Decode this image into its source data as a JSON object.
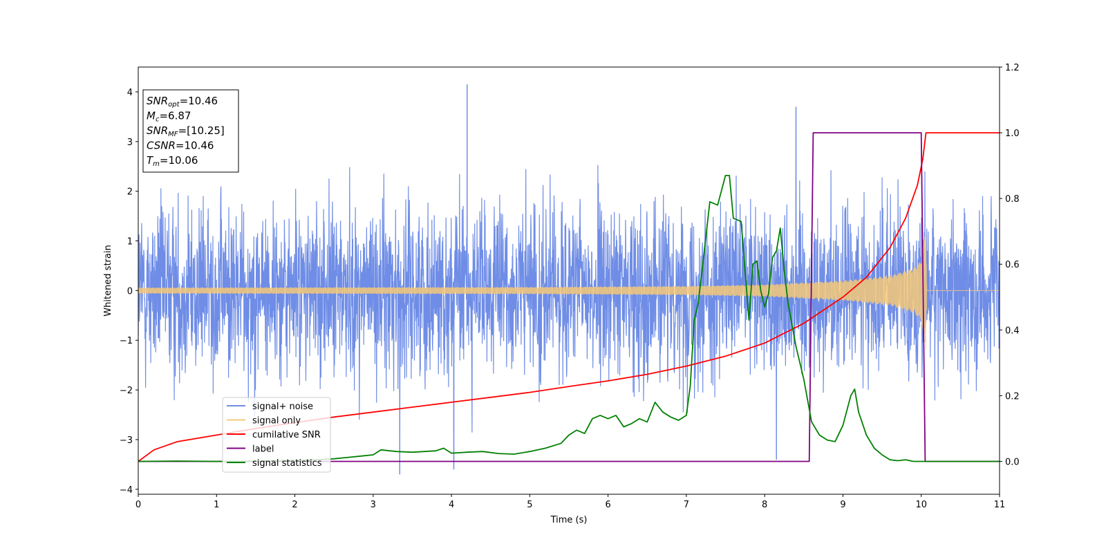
{
  "chart_data": {
    "type": "line",
    "xlabel": "Time (s)",
    "ylabel": "Whitened strain",
    "xlim": [
      0,
      11
    ],
    "ylim_left": [
      -4.1,
      4.5
    ],
    "ylim_right": [
      -0.1,
      1.2
    ],
    "x_ticks": [
      "0",
      "1",
      "2",
      "3",
      "4",
      "5",
      "6",
      "7",
      "8",
      "9",
      "10",
      "11"
    ],
    "y_ticks_left": [
      "−4",
      "−3",
      "−2",
      "−1",
      "0",
      "1",
      "2",
      "3",
      "4"
    ],
    "y_ticks_right": [
      "0.0",
      "0.2",
      "0.4",
      "0.6",
      "0.8",
      "1.0",
      "1.2"
    ],
    "info_box": [
      {
        "base": "SNR",
        "sub": "opt",
        "value": "=10.46"
      },
      {
        "base": "M",
        "sub": "c",
        "value": "=6.87"
      },
      {
        "base": "SNR",
        "sub": "MF",
        "value": "=[10.25]"
      },
      {
        "base": "CSNR",
        "sub": "",
        "value": "=10.46"
      },
      {
        "base": "T",
        "sub": "m",
        "value": "=10.06"
      }
    ],
    "legend": [
      {
        "label": "signal+ noise",
        "color": "#6f8de6"
      },
      {
        "label": "signal only",
        "color": "#f5c878"
      },
      {
        "label": "cumilative SNR",
        "color": "#ff0000"
      },
      {
        "label": "label",
        "color": "#800080"
      },
      {
        "label": "signal statistics",
        "color": "#008000"
      }
    ],
    "series": [
      {
        "name": "signal+ noise",
        "axis": "left",
        "description": "Gaussian-like whitened noise, roughly ±2 with spikes up to ~4.2, over 0–11 s",
        "noise_std": 0.85,
        "peaks": [
          [
            4.2,
            4.15
          ],
          [
            8.4,
            3.7
          ],
          [
            3.34,
            -3.7
          ],
          [
            4.03,
            -3.6
          ],
          [
            8.15,
            -3.4
          ]
        ]
      },
      {
        "name": "signal only",
        "axis": "left",
        "description": "chirp waveform, small amplitude growing until merger at ~10.06 s then zero",
        "envelope": {
          "t": [
            0,
            5,
            7,
            8,
            9,
            9.6,
            9.9,
            10.0,
            10.06,
            10.07,
            11
          ],
          "amp": [
            0.06,
            0.07,
            0.09,
            0.12,
            0.2,
            0.3,
            0.45,
            0.6,
            1.25,
            0.0,
            0.0
          ]
        }
      },
      {
        "name": "cumilative SNR",
        "axis": "right",
        "x": [
          0,
          0.2,
          0.5,
          1,
          1.5,
          2,
          2.5,
          3,
          3.5,
          4,
          4.5,
          5,
          5.5,
          6,
          6.5,
          7,
          7.5,
          8,
          8.5,
          9,
          9.3,
          9.6,
          9.8,
          9.95,
          10.02,
          10.06,
          11
        ],
        "values": [
          0.0,
          0.035,
          0.06,
          0.08,
          0.1,
          0.118,
          0.135,
          0.15,
          0.165,
          0.18,
          0.195,
          0.21,
          0.228,
          0.245,
          0.265,
          0.29,
          0.32,
          0.36,
          0.42,
          0.5,
          0.56,
          0.65,
          0.74,
          0.84,
          0.92,
          1.0,
          1.0
        ]
      },
      {
        "name": "label",
        "axis": "right",
        "x": [
          0,
          8.57,
          8.62,
          10.0,
          10.05,
          11
        ],
        "values": [
          0.0,
          0.0,
          1.0,
          1.0,
          0.0,
          0.0
        ]
      },
      {
        "name": "signal statistics",
        "axis": "right",
        "x": [
          0,
          0.5,
          1,
          1.5,
          2,
          2.3,
          2.5,
          2.8,
          3.0,
          3.1,
          3.3,
          3.5,
          3.8,
          3.9,
          4.0,
          4.2,
          4.4,
          4.6,
          4.8,
          5.0,
          5.2,
          5.4,
          5.5,
          5.6,
          5.7,
          5.8,
          5.9,
          6.0,
          6.1,
          6.2,
          6.3,
          6.4,
          6.5,
          6.6,
          6.7,
          6.8,
          6.9,
          7.0,
          7.05,
          7.1,
          7.15,
          7.2,
          7.3,
          7.4,
          7.5,
          7.55,
          7.6,
          7.7,
          7.8,
          7.85,
          7.9,
          7.95,
          8.0,
          8.05,
          8.1,
          8.15,
          8.2,
          8.25,
          8.3,
          8.4,
          8.5,
          8.6,
          8.7,
          8.8,
          8.9,
          9.0,
          9.1,
          9.15,
          9.2,
          9.3,
          9.4,
          9.5,
          9.6,
          9.7,
          9.8,
          9.9,
          10.0,
          10.1,
          10.5,
          11
        ],
        "values": [
          0.0,
          0.001,
          0.0,
          0.001,
          0.003,
          0.005,
          0.008,
          0.015,
          0.02,
          0.035,
          0.03,
          0.028,
          0.032,
          0.04,
          0.025,
          0.028,
          0.03,
          0.024,
          0.022,
          0.03,
          0.04,
          0.055,
          0.08,
          0.095,
          0.085,
          0.13,
          0.14,
          0.13,
          0.14,
          0.105,
          0.115,
          0.13,
          0.12,
          0.18,
          0.15,
          0.135,
          0.125,
          0.14,
          0.23,
          0.43,
          0.48,
          0.58,
          0.79,
          0.78,
          0.87,
          0.87,
          0.74,
          0.73,
          0.43,
          0.6,
          0.61,
          0.52,
          0.47,
          0.51,
          0.62,
          0.64,
          0.71,
          0.58,
          0.48,
          0.35,
          0.25,
          0.12,
          0.08,
          0.065,
          0.06,
          0.11,
          0.2,
          0.22,
          0.15,
          0.08,
          0.04,
          0.02,
          0.005,
          0.002,
          0.005,
          0.0,
          0.0,
          0.0,
          0.0,
          0.0
        ]
      }
    ]
  }
}
